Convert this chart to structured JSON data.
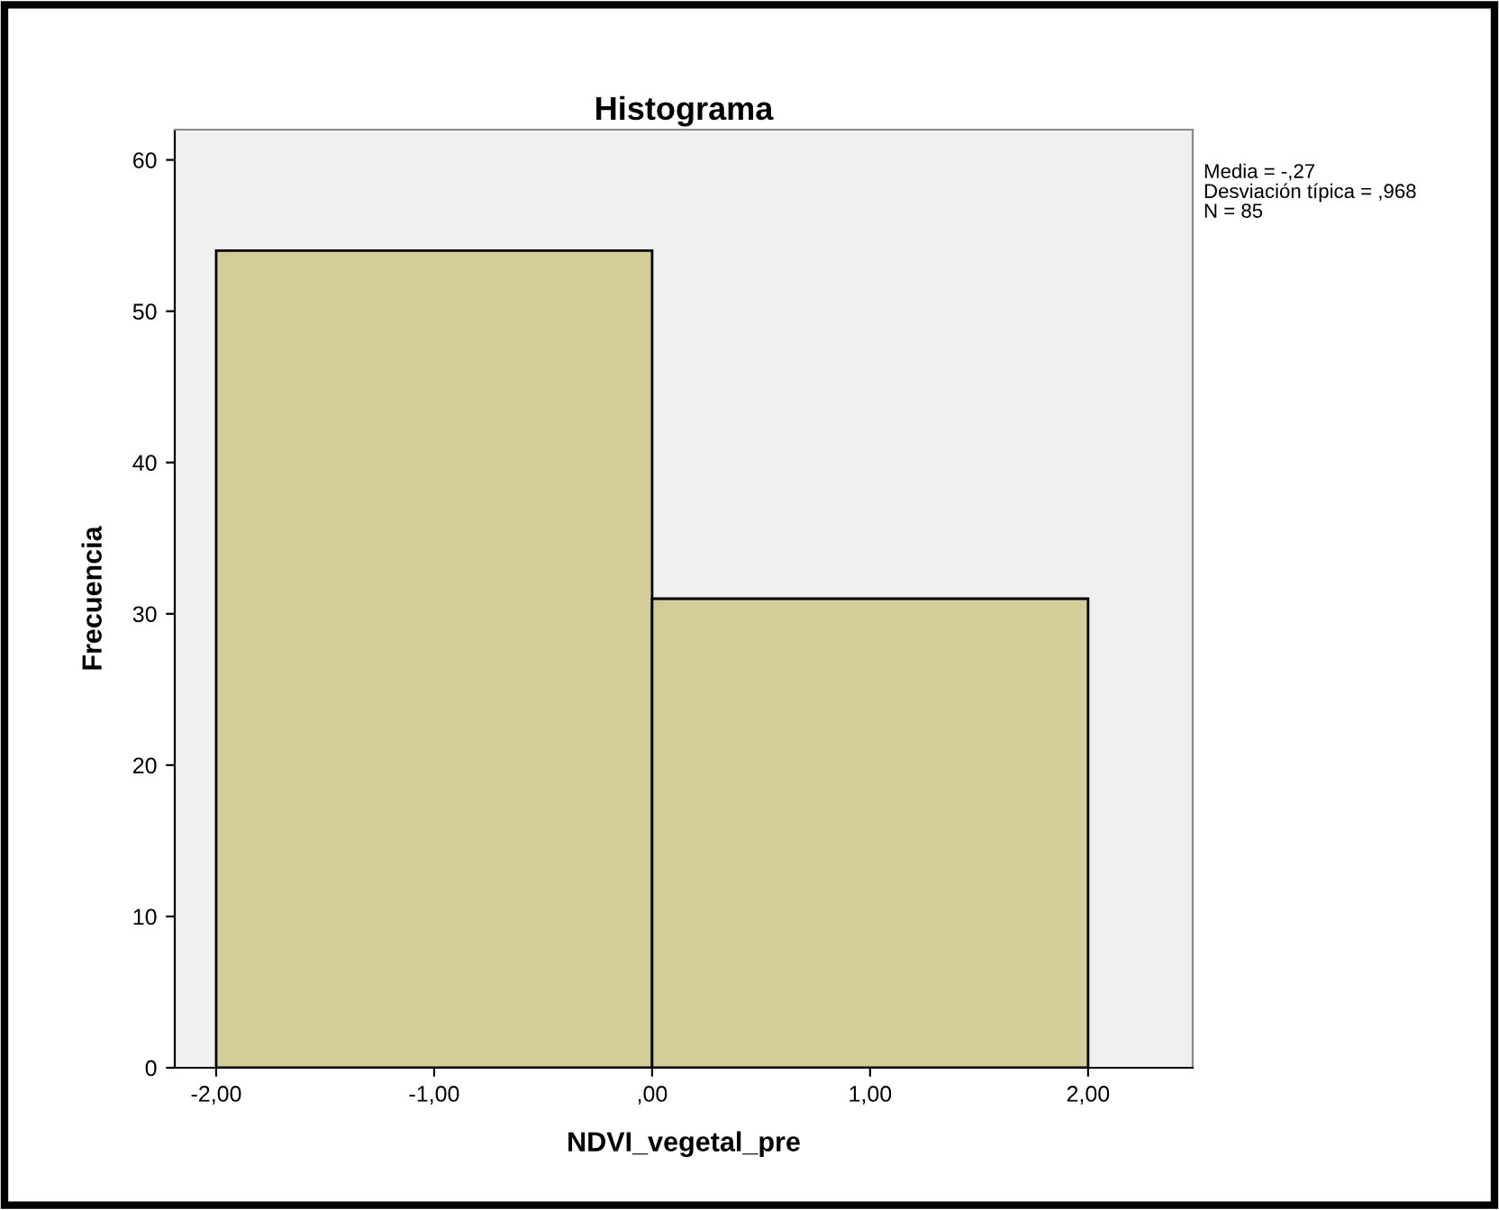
{
  "chart_data": {
    "type": "histogram",
    "title": "Histograma",
    "xlabel": "NDVI_vegetal_pre",
    "ylabel": "Frecuencia",
    "bins": [
      -2,
      0,
      2
    ],
    "values": [
      54,
      31
    ],
    "color": "#d3ce97",
    "xlim": [
      -2.19,
      2.48
    ],
    "ylim": [
      0,
      62
    ],
    "xticks": [
      {
        "value": -2,
        "label": "-2,00"
      },
      {
        "value": -1,
        "label": "-1,00"
      },
      {
        "value": 0,
        "label": ",00"
      },
      {
        "value": 1,
        "label": "1,00"
      },
      {
        "value": 2,
        "label": "2,00"
      }
    ],
    "yticks": [
      0,
      10,
      20,
      30,
      40,
      50,
      60
    ],
    "grid": false,
    "annotations": [
      "Media = -,27",
      "Desviación típica = ,968",
      "N = 85"
    ]
  }
}
